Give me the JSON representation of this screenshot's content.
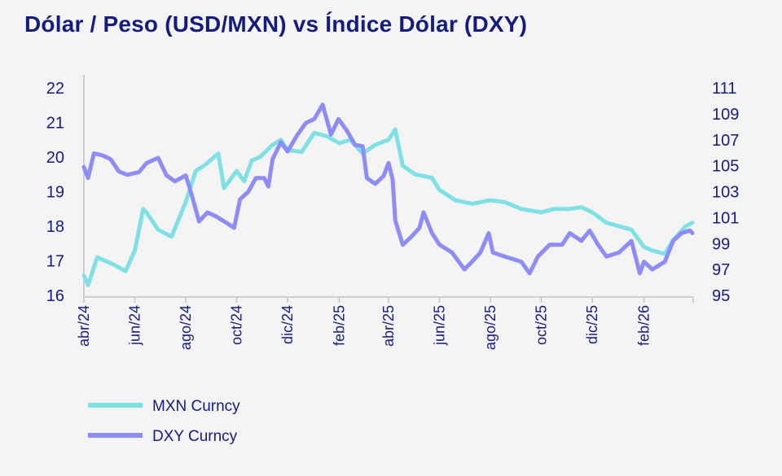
{
  "chart_data": {
    "type": "line",
    "title": "Dólar / Peso (USD/MXN) vs Índice Dólar (DXY)",
    "x_ticks": [
      "abr/24",
      "jun/24",
      "ago/24",
      "oct/24",
      "dic/24",
      "feb/25",
      "abr/25",
      "jun/25",
      "ago/25",
      "oct/25",
      "dic/25",
      "feb/26"
    ],
    "x_range": [
      "2024-04-01",
      "2026-04-01"
    ],
    "y_left": {
      "range": [
        16,
        22
      ],
      "ticks": [
        "16",
        "17",
        "18",
        "19",
        "20",
        "21",
        "22"
      ]
    },
    "y_right": {
      "range": [
        95,
        111
      ],
      "ticks": [
        "95",
        "97",
        "99",
        "101",
        "103",
        "105",
        "107",
        "109",
        "111"
      ]
    },
    "grid": false,
    "legend_position": "bottom-left",
    "colors": {
      "MXN Curncy": "#7fe1e5",
      "DXY Curncy": "#8e8cf6",
      "text": "#141c82",
      "axis": "#cfcfcf",
      "background": "#f4f4f4"
    },
    "series": [
      {
        "name": "MXN Curncy",
        "axis": "left",
        "points": [
          [
            "2024-04-01",
            16.57
          ],
          [
            "2024-04-06",
            16.3
          ],
          [
            "2024-04-17",
            17.1
          ],
          [
            "2024-05-06",
            16.9
          ],
          [
            "2024-05-21",
            16.7
          ],
          [
            "2024-06-01",
            17.3
          ],
          [
            "2024-06-11",
            18.5
          ],
          [
            "2024-06-15",
            18.4
          ],
          [
            "2024-06-29",
            17.9
          ],
          [
            "2024-07-15",
            17.7
          ],
          [
            "2024-08-01",
            18.7
          ],
          [
            "2024-08-13",
            19.6
          ],
          [
            "2024-08-23",
            19.75
          ],
          [
            "2024-09-09",
            20.1
          ],
          [
            "2024-09-16",
            19.1
          ],
          [
            "2024-10-01",
            19.6
          ],
          [
            "2024-10-10",
            19.3
          ],
          [
            "2024-10-19",
            19.9
          ],
          [
            "2024-10-29",
            20.0
          ],
          [
            "2024-11-13",
            20.35
          ],
          [
            "2024-11-23",
            20.5
          ],
          [
            "2024-12-01",
            20.2
          ],
          [
            "2024-12-18",
            20.15
          ],
          [
            "2025-01-02",
            20.7
          ],
          [
            "2025-01-17",
            20.6
          ],
          [
            "2025-02-01",
            20.4
          ],
          [
            "2025-02-14",
            20.5
          ],
          [
            "2025-03-01",
            20.1
          ],
          [
            "2025-03-16",
            20.35
          ],
          [
            "2025-04-01",
            20.5
          ],
          [
            "2025-04-09",
            20.8
          ],
          [
            "2025-04-18",
            19.75
          ],
          [
            "2025-05-03",
            19.5
          ],
          [
            "2025-05-23",
            19.4
          ],
          [
            "2025-06-01",
            19.05
          ],
          [
            "2025-06-20",
            18.75
          ],
          [
            "2025-07-10",
            18.65
          ],
          [
            "2025-08-01",
            18.75
          ],
          [
            "2025-08-18",
            18.7
          ],
          [
            "2025-09-07",
            18.5
          ],
          [
            "2025-10-01",
            18.4
          ],
          [
            "2025-10-16",
            18.5
          ],
          [
            "2025-11-04",
            18.5
          ],
          [
            "2025-11-18",
            18.55
          ],
          [
            "2025-12-01",
            18.4
          ],
          [
            "2025-12-18",
            18.1
          ],
          [
            "2026-01-02",
            18.0
          ],
          [
            "2026-01-17",
            17.9
          ],
          [
            "2026-02-01",
            17.4
          ],
          [
            "2026-02-11",
            17.3
          ],
          [
            "2026-02-26",
            17.2
          ],
          [
            "2026-03-08",
            17.6
          ],
          [
            "2026-03-23",
            18.0
          ],
          [
            "2026-03-31",
            18.1
          ]
        ]
      },
      {
        "name": "DXY Curncy",
        "axis": "right",
        "points": [
          [
            "2024-04-01",
            104.9
          ],
          [
            "2024-04-06",
            104.05
          ],
          [
            "2024-04-13",
            105.95
          ],
          [
            "2024-04-23",
            105.8
          ],
          [
            "2024-05-03",
            105.5
          ],
          [
            "2024-05-13",
            104.55
          ],
          [
            "2024-05-23",
            104.3
          ],
          [
            "2024-06-06",
            104.5
          ],
          [
            "2024-06-15",
            105.2
          ],
          [
            "2024-06-29",
            105.6
          ],
          [
            "2024-07-09",
            104.25
          ],
          [
            "2024-07-19",
            103.8
          ],
          [
            "2024-08-01",
            104.25
          ],
          [
            "2024-08-07",
            103.0
          ],
          [
            "2024-08-17",
            100.7
          ],
          [
            "2024-08-27",
            101.4
          ],
          [
            "2024-09-06",
            101.1
          ],
          [
            "2024-09-21",
            100.5
          ],
          [
            "2024-09-28",
            100.2
          ],
          [
            "2024-10-05",
            102.4
          ],
          [
            "2024-10-15",
            103.0
          ],
          [
            "2024-10-24",
            104.05
          ],
          [
            "2024-11-03",
            104.05
          ],
          [
            "2024-11-08",
            103.4
          ],
          [
            "2024-11-13",
            105.5
          ],
          [
            "2024-11-23",
            106.8
          ],
          [
            "2024-12-01",
            106.1
          ],
          [
            "2024-12-13",
            107.4
          ],
          [
            "2024-12-23",
            108.3
          ],
          [
            "2025-01-02",
            108.6
          ],
          [
            "2025-01-12",
            109.7
          ],
          [
            "2025-01-22",
            107.4
          ],
          [
            "2025-01-31",
            108.6
          ],
          [
            "2025-02-10",
            107.7
          ],
          [
            "2025-02-20",
            106.6
          ],
          [
            "2025-03-01",
            106.5
          ],
          [
            "2025-03-06",
            104.05
          ],
          [
            "2025-03-16",
            103.6
          ],
          [
            "2025-03-26",
            104.2
          ],
          [
            "2025-04-01",
            105.2
          ],
          [
            "2025-04-06",
            103.9
          ],
          [
            "2025-04-09",
            100.8
          ],
          [
            "2025-04-18",
            98.9
          ],
          [
            "2025-04-28",
            99.5
          ],
          [
            "2025-05-08",
            100.2
          ],
          [
            "2025-05-13",
            101.4
          ],
          [
            "2025-05-23",
            99.8
          ],
          [
            "2025-06-01",
            98.9
          ],
          [
            "2025-06-16",
            98.3
          ],
          [
            "2025-07-01",
            97.0
          ],
          [
            "2025-07-10",
            97.6
          ],
          [
            "2025-07-20",
            98.3
          ],
          [
            "2025-07-30",
            99.8
          ],
          [
            "2025-08-04",
            98.3
          ],
          [
            "2025-08-18",
            98.0
          ],
          [
            "2025-09-07",
            97.6
          ],
          [
            "2025-09-17",
            96.7
          ],
          [
            "2025-09-27",
            98.0
          ],
          [
            "2025-10-11",
            98.9
          ],
          [
            "2025-10-26",
            98.9
          ],
          [
            "2025-11-04",
            99.8
          ],
          [
            "2025-11-18",
            99.2
          ],
          [
            "2025-11-28",
            100.0
          ],
          [
            "2025-12-08",
            98.9
          ],
          [
            "2025-12-18",
            98.0
          ],
          [
            "2026-01-02",
            98.3
          ],
          [
            "2026-01-17",
            99.2
          ],
          [
            "2026-01-27",
            96.7
          ],
          [
            "2026-02-01",
            97.6
          ],
          [
            "2026-02-11",
            97.0
          ],
          [
            "2026-02-26",
            97.6
          ],
          [
            "2026-03-08",
            99.2
          ],
          [
            "2026-03-18",
            99.8
          ],
          [
            "2026-03-28",
            100.0
          ],
          [
            "2026-03-31",
            99.8
          ]
        ]
      }
    ]
  }
}
